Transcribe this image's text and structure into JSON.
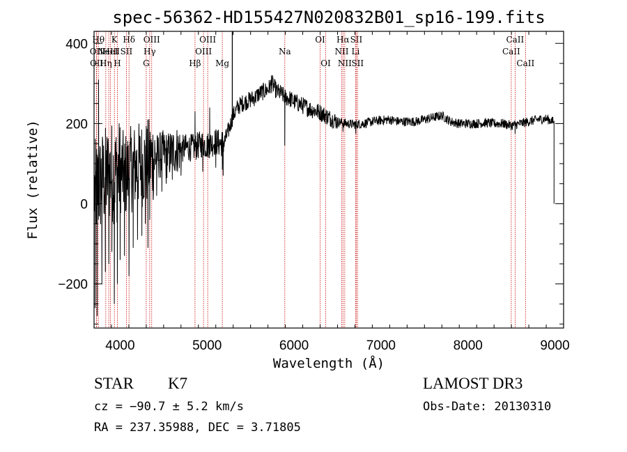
{
  "chart_data": {
    "type": "line",
    "title": "spec-56362-HD155427N020832B01_sp16-199.fits",
    "xlabel": "Wavelength (Å)",
    "ylabel": "Flux (relative)",
    "xlim": [
      3700,
      9100
    ],
    "ylim": [
      -310,
      430
    ],
    "xticks": [
      4000,
      5000,
      6000,
      7000,
      8000,
      9000
    ],
    "yticks": [
      -200,
      0,
      200,
      400
    ],
    "series": [
      {
        "name": "flux",
        "anchors": [
          [
            3700,
            30
          ],
          [
            3750,
            40
          ],
          [
            3800,
            60
          ],
          [
            3850,
            70
          ],
          [
            3900,
            80
          ],
          [
            3950,
            75
          ],
          [
            4000,
            85
          ],
          [
            4050,
            70
          ],
          [
            4100,
            80
          ],
          [
            4150,
            90
          ],
          [
            4200,
            95
          ],
          [
            4250,
            100
          ],
          [
            4300,
            100
          ],
          [
            4350,
            110
          ],
          [
            4400,
            115
          ],
          [
            4450,
            120
          ],
          [
            4500,
            125
          ],
          [
            4550,
            120
          ],
          [
            4600,
            130
          ],
          [
            4650,
            135
          ],
          [
            4700,
            135
          ],
          [
            4750,
            140
          ],
          [
            4800,
            140
          ],
          [
            4850,
            140
          ],
          [
            4900,
            145
          ],
          [
            4950,
            150
          ],
          [
            5000,
            145
          ],
          [
            5050,
            150
          ],
          [
            5100,
            155
          ],
          [
            5150,
            150
          ],
          [
            5200,
            155
          ],
          [
            5250,
            185
          ],
          [
            5300,
            220
          ],
          [
            5350,
            240
          ],
          [
            5400,
            250
          ],
          [
            5450,
            255
          ],
          [
            5500,
            260
          ],
          [
            5550,
            265
          ],
          [
            5600,
            275
          ],
          [
            5650,
            280
          ],
          [
            5700,
            285
          ],
          [
            5750,
            300
          ],
          [
            5800,
            280
          ],
          [
            5850,
            275
          ],
          [
            5900,
            265
          ],
          [
            5950,
            262
          ],
          [
            6000,
            255
          ],
          [
            6050,
            250
          ],
          [
            6100,
            245
          ],
          [
            6150,
            240
          ],
          [
            6200,
            235
          ],
          [
            6300,
            228
          ],
          [
            6400,
            215
          ],
          [
            6500,
            205
          ],
          [
            6600,
            200
          ],
          [
            6700,
            198
          ],
          [
            6800,
            200
          ],
          [
            6900,
            205
          ],
          [
            7000,
            208
          ],
          [
            7100,
            210
          ],
          [
            7200,
            205
          ],
          [
            7300,
            205
          ],
          [
            7400,
            205
          ],
          [
            7500,
            210
          ],
          [
            7600,
            215
          ],
          [
            7700,
            220
          ],
          [
            7800,
            205
          ],
          [
            7900,
            200
          ],
          [
            8000,
            200
          ],
          [
            8100,
            200
          ],
          [
            8200,
            202
          ],
          [
            8300,
            200
          ],
          [
            8400,
            200
          ],
          [
            8500,
            195
          ],
          [
            8600,
            200
          ],
          [
            8700,
            205
          ],
          [
            8800,
            210
          ],
          [
            8900,
            212
          ],
          [
            8980,
            205
          ]
        ],
        "spikes": [
          [
            3713,
            -260
          ],
          [
            3736,
            -280
          ],
          [
            3752,
            310
          ],
          [
            3790,
            -200
          ],
          [
            3830,
            -170
          ],
          [
            3870,
            -150
          ],
          [
            3905,
            -120
          ],
          [
            3933,
            -250
          ],
          [
            3968,
            -200
          ],
          [
            4000,
            -140
          ],
          [
            4050,
            -130
          ],
          [
            4102,
            -180
          ],
          [
            4150,
            -110
          ],
          [
            4200,
            -90
          ],
          [
            4250,
            -80
          ],
          [
            4290,
            -50
          ],
          [
            4320,
            -110
          ],
          [
            4340,
            -40
          ],
          [
            4380,
            10
          ],
          [
            4420,
            20
          ],
          [
            4480,
            30
          ],
          [
            4530,
            50
          ],
          [
            4600,
            60
          ],
          [
            4700,
            70
          ],
          [
            4861,
            230
          ],
          [
            4950,
            80
          ],
          [
            5030,
            240
          ],
          [
            5100,
            90
          ],
          [
            5175,
            85
          ],
          [
            5185,
            70
          ],
          [
            5740,
            320
          ],
          [
            5893,
            145
          ],
          [
            6563,
            180
          ],
          [
            6710,
            175
          ],
          [
            8542,
            175
          ]
        ],
        "endpoint": [
          8990,
          0
        ]
      }
    ],
    "line_markers": [
      {
        "wavelength": 3727,
        "label": "OII",
        "row": 2
      },
      {
        "wavelength": 3730,
        "label": "OII",
        "row": 3
      },
      {
        "wavelength": 3750,
        "label": "Hθ",
        "row": 1
      },
      {
        "wavelength": 3835,
        "label": "Hη",
        "row": 3
      },
      {
        "wavelength": 3869,
        "label": "NeIII",
        "row": 2
      },
      {
        "wavelength": 3889,
        "label": "HeI",
        "row": 2
      },
      {
        "wavelength": 3934,
        "label": "K",
        "row": 1
      },
      {
        "wavelength": 3968,
        "label": "H",
        "row": 3
      },
      {
        "wavelength": 4072,
        "label": "SII",
        "row": 2
      },
      {
        "wavelength": 4102,
        "label": "Hδ",
        "row": 1
      },
      {
        "wavelength": 4300,
        "label": "G",
        "row": 3
      },
      {
        "wavelength": 4340,
        "label": "Hγ",
        "row": 2
      },
      {
        "wavelength": 4363,
        "label": "OIII",
        "row": 1
      },
      {
        "wavelength": 4861,
        "label": "Hβ",
        "row": 3
      },
      {
        "wavelength": 4959,
        "label": "OIII",
        "row": 2
      },
      {
        "wavelength": 5007,
        "label": "OIII",
        "row": 1
      },
      {
        "wavelength": 5175,
        "label": "Mg",
        "row": 3
      },
      {
        "wavelength": 5894,
        "label": "Na",
        "row": 2
      },
      {
        "wavelength": 6300,
        "label": "OI",
        "row": 1
      },
      {
        "wavelength": 6364,
        "label": "OI",
        "row": 3
      },
      {
        "wavelength": 6548,
        "label": "NII",
        "row": 2
      },
      {
        "wavelength": 6563,
        "label": "Hα",
        "row": 1
      },
      {
        "wavelength": 6583,
        "label": "NII",
        "row": 3
      },
      {
        "wavelength": 6708,
        "label": "Li",
        "row": 2
      },
      {
        "wavelength": 6716,
        "label": "SII",
        "row": 1
      },
      {
        "wavelength": 6731,
        "label": "SII",
        "row": 3
      },
      {
        "wavelength": 8498,
        "label": "CaII",
        "row": 2
      },
      {
        "wavelength": 8542,
        "label": "CaII",
        "row": 1
      },
      {
        "wavelength": 8662,
        "label": "CaII",
        "row": 3
      }
    ],
    "vertical_solid_line": 5290
  },
  "info": {
    "object_type": "STAR",
    "subclass": "K7",
    "cz": "cz = −90.7 ± 5.2 km/s",
    "coords": "RA = 237.35988, DEC =   3.71805",
    "survey": "LAMOST DR3",
    "obs_date": "Obs-Date: 20130310"
  },
  "colors": {
    "spectrum": "#000000",
    "marker": "#cc0000",
    "background": "#ffffff"
  }
}
